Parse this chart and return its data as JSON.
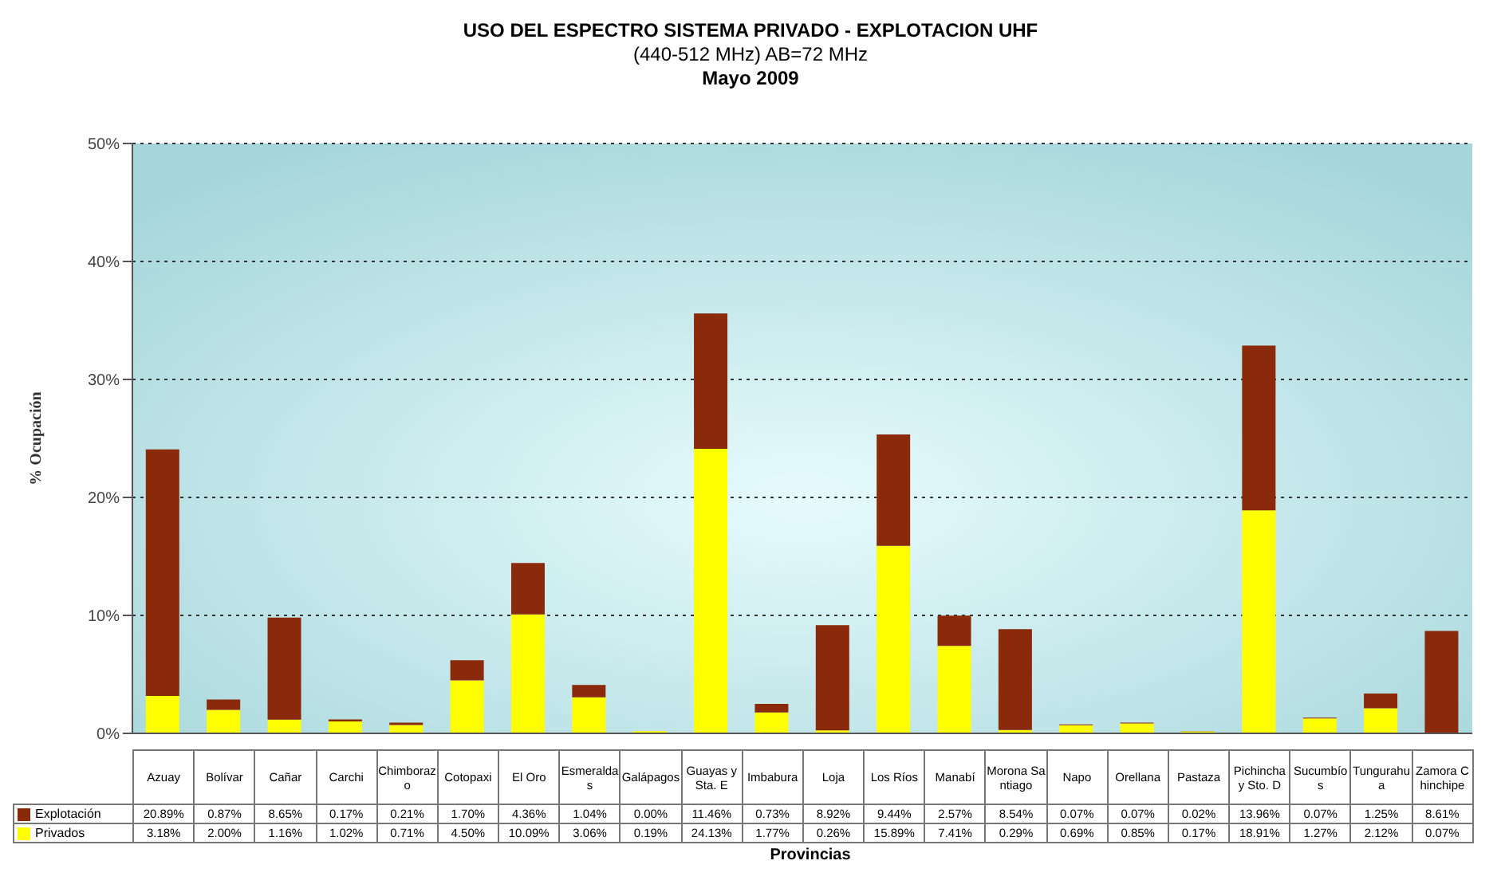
{
  "chart_data": {
    "type": "bar",
    "title": "USO DEL ESPECTRO SISTEMA PRIVADO - EXPLOTACION UHF",
    "subtitle": "(440-512 MHz) AB=72 MHz",
    "annotations": [
      "Mayo 2009"
    ],
    "xlabel": "Provincias",
    "ylabel": "% Ocupación",
    "categories": [
      "Azuay",
      "Bolívar",
      "Cañar",
      "Carchi",
      "Chimborazo",
      "Cotopaxi",
      "El Oro",
      "Esmeraldas",
      "Galápagos",
      "Guayas y Sta. E",
      "Imbabura",
      "Loja",
      "Los Ríos",
      "Manabí",
      "Morona Santiago",
      "Napo",
      "Orellana",
      "Pastaza",
      "Pichincha y Sto. D",
      "Sucumbíos",
      "Tungurahua",
      "Zamora Chinchipe"
    ],
    "stacked": true,
    "series": [
      {
        "name": "Privados",
        "color": "#ffff00",
        "values": [
          3.18,
          2.0,
          1.16,
          1.02,
          0.71,
          4.5,
          10.09,
          3.06,
          0.19,
          24.13,
          1.77,
          0.26,
          15.89,
          7.41,
          0.29,
          0.69,
          0.85,
          0.17,
          18.91,
          1.27,
          2.12,
          0.07
        ],
        "value_labels": [
          "3.18%",
          "2.00%",
          "1.16%",
          "1.02%",
          "0.71%",
          "4.50%",
          "10.09%",
          "3.06%",
          "0.19%",
          "24.13%",
          "1.77%",
          "0.26%",
          "15.89%",
          "7.41%",
          "0.29%",
          "0.69%",
          "0.85%",
          "0.17%",
          "18.91%",
          "1.27%",
          "2.12%",
          "0.07%"
        ]
      },
      {
        "name": "Explotación",
        "color": "#8b2a0a",
        "values": [
          20.89,
          0.87,
          8.65,
          0.17,
          0.21,
          1.7,
          4.36,
          1.04,
          0.0,
          11.46,
          0.73,
          8.92,
          9.44,
          2.57,
          8.54,
          0.07,
          0.07,
          0.02,
          13.96,
          0.07,
          1.25,
          8.61
        ],
        "value_labels": [
          "20.89%",
          "0.87%",
          "8.65%",
          "0.17%",
          "0.21%",
          "1.70%",
          "4.36%",
          "1.04%",
          "0.00%",
          "11.46%",
          "0.73%",
          "8.92%",
          "9.44%",
          "2.57%",
          "8.54%",
          "0.07%",
          "0.07%",
          "0.02%",
          "13.96%",
          "0.07%",
          "1.25%",
          "8.61%"
        ]
      }
    ],
    "ylim": [
      0,
      50
    ],
    "yticks": [
      {
        "value": 0,
        "label": "0%"
      },
      {
        "value": 10,
        "label": "10%"
      },
      {
        "value": 20,
        "label": "20%"
      },
      {
        "value": 30,
        "label": "30%"
      },
      {
        "value": 40,
        "label": "40%"
      },
      {
        "value": 50,
        "label": "50%"
      }
    ],
    "grid": "y",
    "legend": "bottom left"
  }
}
